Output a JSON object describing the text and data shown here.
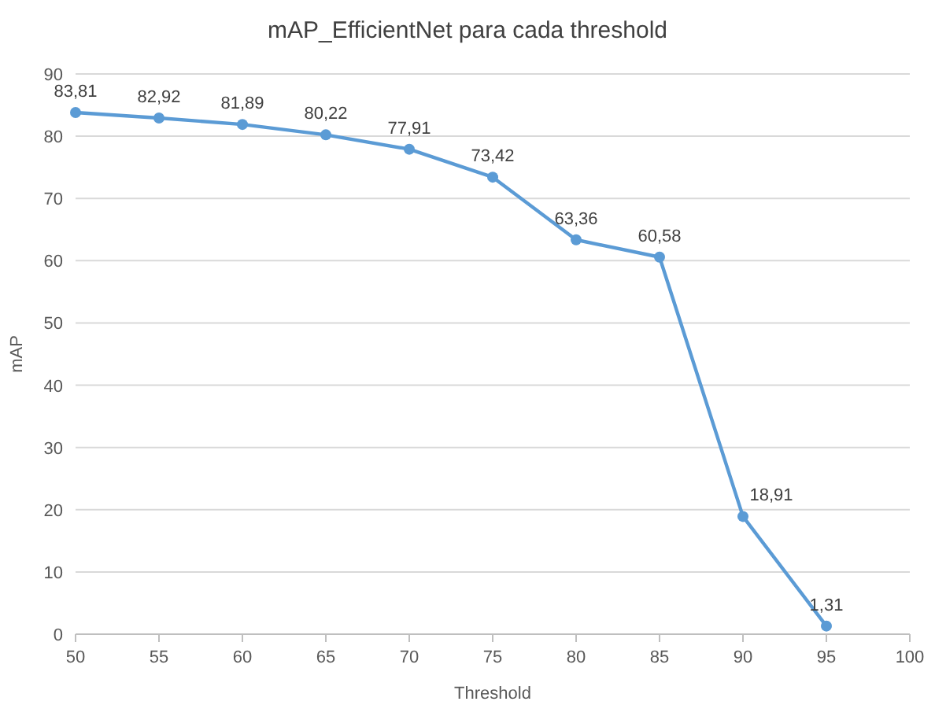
{
  "chart_data": {
    "type": "line",
    "title": "mAP_EfficientNet para cada threshold",
    "xlabel": "Threshold",
    "ylabel": "mAP",
    "x": [
      50,
      55,
      60,
      65,
      70,
      75,
      80,
      85,
      90,
      95
    ],
    "series": [
      {
        "color": "#5b9bd5",
        "values": [
          83.81,
          82.92,
          81.89,
          80.22,
          77.91,
          73.42,
          63.36,
          60.58,
          18.91,
          1.31
        ],
        "value_labels": [
          "83,81",
          "82,92",
          "81,89",
          "80,22",
          "77,91",
          "73,42",
          "63,36",
          "60,58",
          "18,91",
          "1,31"
        ]
      }
    ],
    "xlim": [
      50,
      100
    ],
    "xticks": [
      50,
      55,
      60,
      65,
      70,
      75,
      80,
      85,
      90,
      95,
      100
    ],
    "ylim": [
      0,
      90
    ],
    "yticks": [
      0,
      10,
      20,
      30,
      40,
      50,
      60,
      70,
      80,
      90
    ],
    "grid": "y",
    "marker": "circle",
    "line_style": "solid"
  }
}
